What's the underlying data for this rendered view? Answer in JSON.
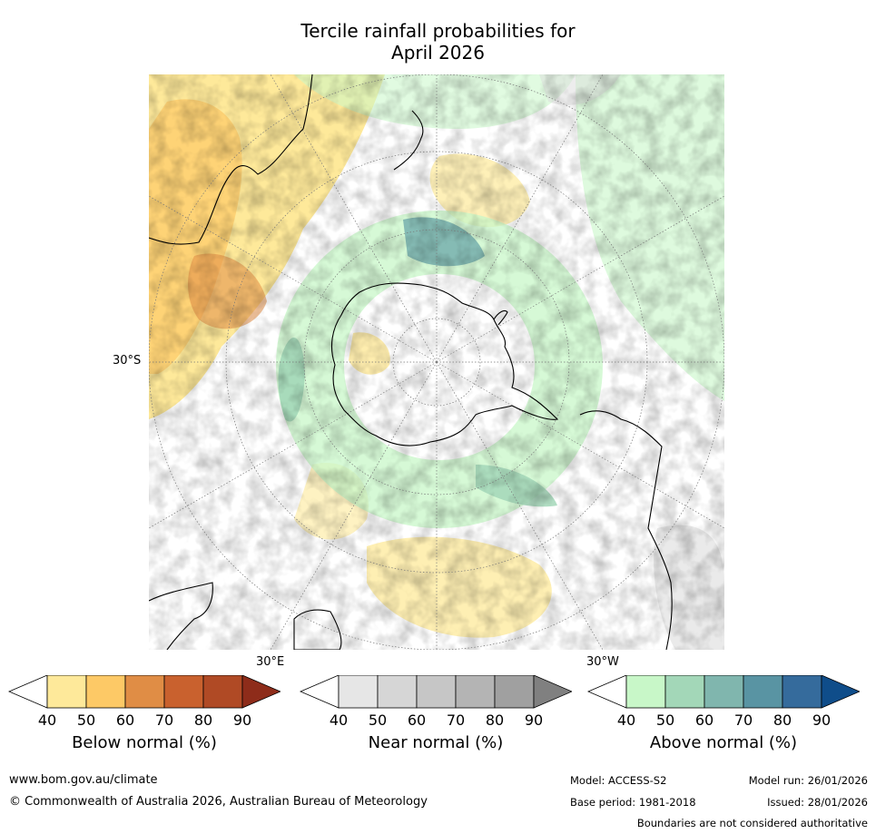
{
  "title_line1": "Tercile rainfall probabilities for",
  "title_line2": "April 2026",
  "map": {
    "lat_label": "30°S",
    "lon_label_left": "30°E",
    "lon_label_right": "30°W",
    "colors": {
      "below_light": "#fee99a",
      "below_mid": "#fdc966",
      "below_dark": "#e08d45",
      "near": "#dcdcdc",
      "above_light": "#c8f7c8",
      "above_mid": "#a3d7b8",
      "above_dark": "#6aa6a8",
      "coast": "#000000",
      "border": "#888888",
      "grid": "#777777"
    }
  },
  "colorbars": [
    {
      "title": "Below normal (%)",
      "ticks": [
        "40",
        "50",
        "60",
        "70",
        "80",
        "90"
      ],
      "colors": [
        "#ffffff",
        "#fee99a",
        "#fdc966",
        "#e08d45",
        "#c9612e",
        "#b04a25",
        "#8e2c1a"
      ]
    },
    {
      "title": "Near normal (%)",
      "ticks": [
        "40",
        "50",
        "60",
        "70",
        "80",
        "90"
      ],
      "colors": [
        "#ffffff",
        "#e6e6e6",
        "#d6d6d6",
        "#c6c6c6",
        "#b4b4b4",
        "#a0a0a0",
        "#808080"
      ]
    },
    {
      "title": "Above normal (%)",
      "ticks": [
        "40",
        "50",
        "60",
        "70",
        "80",
        "90"
      ],
      "colors": [
        "#ffffff",
        "#c8f7c8",
        "#a3d7b8",
        "#80b6ae",
        "#5994a3",
        "#356b9c",
        "#0f4d8a"
      ]
    }
  ],
  "footer": {
    "website": "www.bom.gov.au/climate",
    "copyright": "© Commonwealth of Australia 2026, Australian Bureau of Meteorology",
    "model": "Model: ACCESS-S2",
    "base_period": "Base period: 1981-2018",
    "model_run": "Model run: 26/01/2026",
    "issued": "Issued: 28/01/2026",
    "disclaimer": "Boundaries are not considered authoritative"
  }
}
